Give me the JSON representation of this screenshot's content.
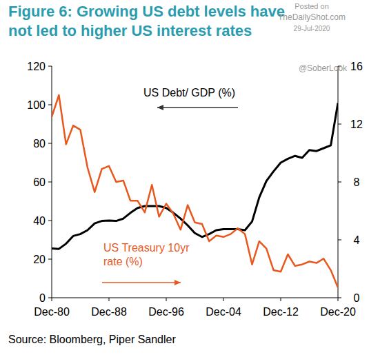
{
  "chart_data": {
    "type": "line",
    "title": "Figure 6: Growing US debt levels have not led to higher US interest rates",
    "x": [
      1980,
      1981,
      1982,
      1983,
      1984,
      1985,
      1986,
      1987,
      1988,
      1989,
      1990,
      1991,
      1992,
      1993,
      1994,
      1995,
      1996,
      1997,
      1998,
      1999,
      2000,
      2001,
      2002,
      2003,
      2004,
      2005,
      2006,
      2007,
      2008,
      2009,
      2010,
      2011,
      2012,
      2013,
      2014,
      2015,
      2016,
      2017,
      2018,
      2019,
      2020
    ],
    "xlim": [
      1980,
      2020
    ],
    "xticks": [
      {
        "value": 1980,
        "label": "Dec-80"
      },
      {
        "value": 1988,
        "label": "Dec-88"
      },
      {
        "value": 1996,
        "label": "Dec-96"
      },
      {
        "value": 2004,
        "label": "Dec-04"
      },
      {
        "value": 2012,
        "label": "Dec-12"
      },
      {
        "value": 2020,
        "label": "Dec-20"
      }
    ],
    "ylim": [
      0,
      120
    ],
    "yticks": [
      0,
      20,
      40,
      60,
      80,
      100,
      120
    ],
    "y2lim": [
      0,
      16
    ],
    "y2ticks": [
      0,
      4,
      8,
      12,
      16
    ],
    "series": [
      {
        "name": "US Debt/ GDP (%)",
        "color": "#000000",
        "values": [
          25.5,
          25.3,
          28,
          32,
          33,
          35,
          38.5,
          39.8,
          40,
          39.8,
          41,
          44,
          46.5,
          47.5,
          47.5,
          47.5,
          46.5,
          44,
          41,
          37.5,
          33.5,
          31.5,
          33,
          35,
          35.5,
          35.5,
          35.5,
          35,
          39.5,
          52,
          60.5,
          65.5,
          70,
          72,
          73.5,
          72.5,
          76.5,
          76,
          77.5,
          79,
          101
        ]
      },
      {
        "name": "US Treasury 10yr rate  (%)",
        "color": "#e8581e",
        "axis": "y2",
        "values": [
          12.5,
          14.0,
          10.6,
          11.9,
          11.6,
          9.0,
          7.3,
          8.9,
          9.1,
          8.0,
          8.1,
          6.7,
          6.7,
          5.9,
          7.8,
          5.6,
          6.5,
          5.8,
          4.7,
          6.4,
          5.2,
          5.1,
          3.9,
          4.3,
          4.2,
          4.4,
          4.8,
          4.4,
          2.3,
          3.9,
          3.4,
          1.9,
          1.8,
          3.0,
          2.2,
          2.3,
          2.5,
          2.4,
          2.7,
          1.9,
          0.7
        ]
      }
    ],
    "grid": false,
    "source": "Source: Bloomberg, Piper Sandler",
    "annotations": [
      "Posted on",
      "TheDailyShot.com",
      "29-Jul-2020",
      "@SoberLook"
    ]
  }
}
